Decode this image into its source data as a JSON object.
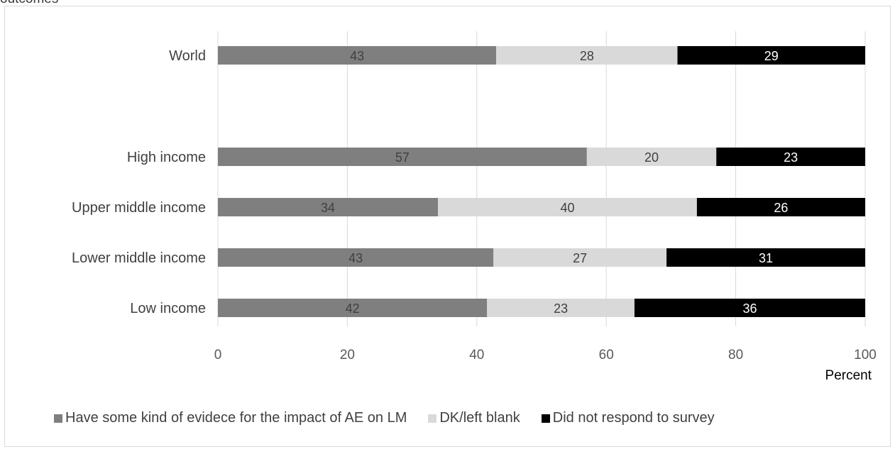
{
  "top_title": "outcomes",
  "chart_data": {
    "type": "bar",
    "orientation": "horizontal",
    "stacked": true,
    "categories": [
      "World",
      "High income",
      "Upper middle income",
      "Lower middle income",
      "Low income"
    ],
    "series": [
      {
        "name": "Have some kind of evidece for the impact of AE on LM",
        "values": [
          43,
          57,
          34,
          43,
          42
        ],
        "color": "#7f7f7f",
        "label_color": "#404040"
      },
      {
        "name": "DK/left blank",
        "values": [
          28,
          20,
          40,
          27,
          23
        ],
        "color": "#d9d9d9",
        "label_color": "#404040"
      },
      {
        "name": "Did not respond to survey",
        "values": [
          29,
          23,
          26,
          31,
          36
        ],
        "color": "#000000",
        "label_color": "#ffffff"
      }
    ],
    "xlim": [
      0,
      100
    ],
    "xticks": [
      "0",
      "20",
      "40",
      "60",
      "80",
      "100"
    ],
    "xlabel": "Percent",
    "grid": "vertical",
    "legend_position": "bottom"
  }
}
